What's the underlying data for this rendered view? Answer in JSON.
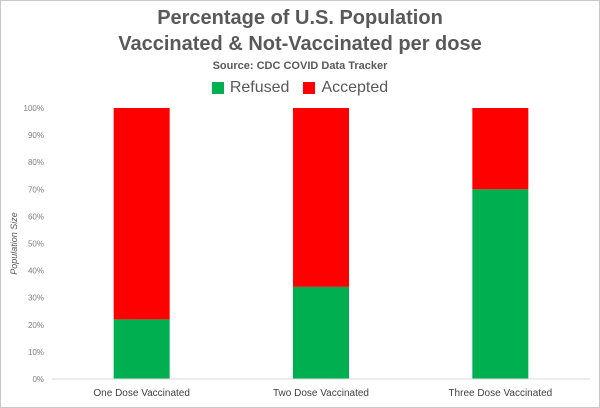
{
  "chart_data": {
    "type": "bar",
    "stacked": true,
    "title_line1": "Percentage of U.S. Population",
    "title_line2": "Vaccinated & Not-Vaccinated per dose",
    "subtitle": "Source: CDC COVID Data Tracker",
    "xlabel": "",
    "ylabel": "Population Size",
    "categories": [
      "One Dose Vaccinated",
      "Two Dose Vaccinated",
      "Three Dose Vaccinated"
    ],
    "series": [
      {
        "name": "Refused",
        "color": "#00b050",
        "values": [
          22,
          34,
          70
        ]
      },
      {
        "name": "Accepted",
        "color": "#ff0000",
        "values": [
          78,
          66,
          30
        ]
      }
    ],
    "ylim": [
      0,
      100
    ],
    "yticks": [
      "0%",
      "10%",
      "20%",
      "30%",
      "40%",
      "50%",
      "60%",
      "70%",
      "80%",
      "90%",
      "100%"
    ],
    "grid": false,
    "legend_position": "top"
  }
}
